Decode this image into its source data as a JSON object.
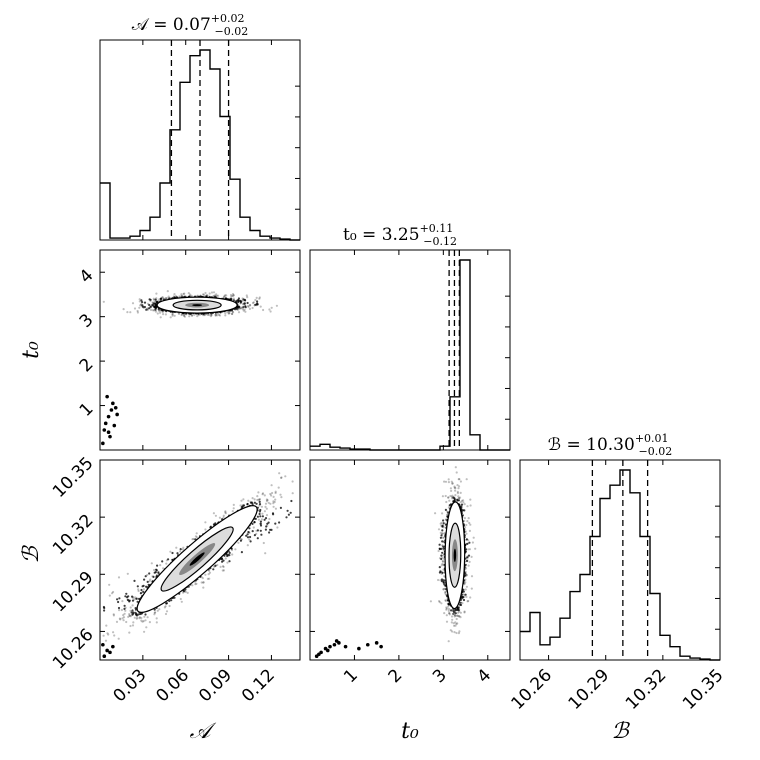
{
  "chart_data": {
    "type": "corner",
    "parameters": [
      {
        "key": "A",
        "axis_label": "𝒜",
        "title": {
          "lhs": "𝒜 = 0.07",
          "plus": "+0.02",
          "minus": "−0.02"
        },
        "range": [
          0.0,
          0.14
        ],
        "ticks": [
          0.03,
          0.06,
          0.09,
          0.12
        ],
        "tick_labels": [
          "0.03",
          "0.06",
          "0.09",
          "0.12"
        ],
        "quantiles": [
          0.05,
          0.07,
          0.09
        ],
        "histogram": {
          "edges_start": 0.0,
          "bin_width": 0.007,
          "counts": [
            0.3,
            0.01,
            0.01,
            0.02,
            0.05,
            0.12,
            0.3,
            0.58,
            0.83,
            0.97,
            1.0,
            0.9,
            0.65,
            0.32,
            0.12,
            0.05,
            0.02,
            0.01,
            0.005,
            0.0
          ]
        }
      },
      {
        "key": "t0",
        "axis_label": "t₀",
        "title": {
          "lhs": "t₀ = 3.25",
          "plus": "+0.11",
          "minus": "−0.12"
        },
        "range": [
          0.0,
          4.5
        ],
        "ticks": [
          1,
          2,
          3,
          4
        ],
        "tick_labels": [
          "1",
          "2",
          "3",
          "4"
        ],
        "quantiles": [
          3.13,
          3.25,
          3.36
        ],
        "histogram": {
          "edges_start": 0.0,
          "bin_width": 0.225,
          "counts": [
            0.02,
            0.03,
            0.015,
            0.01,
            0.005,
            0.005,
            0.0,
            0.0,
            0.0,
            0.0,
            0.0,
            0.0,
            0.0,
            0.02,
            0.28,
            1.0,
            0.08,
            0.0,
            0.0,
            0.0
          ]
        }
      },
      {
        "key": "B",
        "axis_label": "ℬ",
        "title": {
          "lhs": "ℬ = 10.30",
          "plus": "+0.01",
          "minus": "−0.02"
        },
        "range": [
          10.245,
          10.35
        ],
        "ticks": [
          10.26,
          10.29,
          10.32,
          10.35
        ],
        "tick_labels": [
          "10.26",
          "10.29",
          "10.32",
          "10.35"
        ],
        "quantiles": [
          10.283,
          10.299,
          10.312
        ],
        "histogram": {
          "edges_start": 10.245,
          "bin_width": 0.00525,
          "counts": [
            0.15,
            0.25,
            0.08,
            0.12,
            0.22,
            0.36,
            0.45,
            0.65,
            0.85,
            0.92,
            1.0,
            0.88,
            0.65,
            0.35,
            0.13,
            0.07,
            0.02,
            0.01,
            0.005,
            0.0
          ]
        }
      }
    ],
    "pairs": [
      {
        "x": "A",
        "y": "t0",
        "core": {
          "mean": [
            0.068,
            3.26
          ],
          "sd": [
            0.014,
            0.09
          ],
          "rho": 0.0,
          "n": 2400
        },
        "stray_points": [
          [
            0.003,
            0.45
          ],
          [
            0.004,
            0.6
          ],
          [
            0.006,
            0.75
          ],
          [
            0.008,
            0.9
          ],
          [
            0.009,
            1.05
          ],
          [
            0.005,
            1.2
          ],
          [
            0.007,
            0.3
          ],
          [
            0.01,
            0.55
          ],
          [
            0.012,
            0.8
          ],
          [
            0.002,
            0.15
          ],
          [
            0.011,
            0.95
          ],
          [
            0.006,
            0.4
          ]
        ]
      },
      {
        "x": "A",
        "y": "B",
        "core": {
          "mean": [
            0.068,
            10.298
          ],
          "sd": [
            0.021,
            0.014
          ],
          "rho": 0.93,
          "n": 2600
        },
        "stray_points": [
          [
            0.003,
            10.247
          ],
          [
            0.005,
            10.25
          ],
          [
            0.002,
            10.253
          ],
          [
            0.007,
            10.249
          ],
          [
            0.009,
            10.252
          ]
        ]
      },
      {
        "x": "t0",
        "y": "B",
        "core": {
          "mean": [
            3.26,
            10.3
          ],
          "sd": [
            0.11,
            0.014
          ],
          "rho": 0.05,
          "n": 2200
        },
        "stray_points": [
          [
            0.15,
            10.247
          ],
          [
            0.25,
            10.249
          ],
          [
            0.35,
            10.251
          ],
          [
            0.45,
            10.252
          ],
          [
            0.55,
            10.253
          ],
          [
            0.65,
            10.254
          ],
          [
            0.8,
            10.252
          ],
          [
            1.1,
            10.251
          ],
          [
            1.3,
            10.253
          ],
          [
            1.5,
            10.254
          ],
          [
            0.4,
            10.25
          ],
          [
            0.6,
            10.255
          ],
          [
            1.6,
            10.252
          ],
          [
            0.2,
            10.248
          ]
        ]
      }
    ]
  }
}
